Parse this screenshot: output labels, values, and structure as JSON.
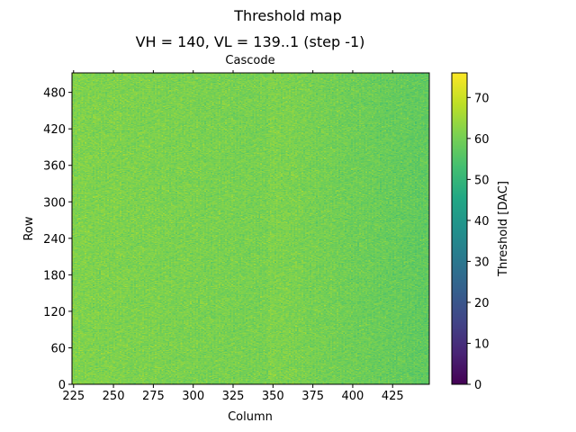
{
  "chart_data": {
    "type": "heatmap",
    "suptitle": "Threshold map",
    "title": "VH = 140, VL = 139..1 (step -1)",
    "top_label": "Cascode",
    "xlabel": "Column",
    "ylabel": "Row",
    "colorbar_label": "Threshold [DAC]",
    "colormap": "viridis",
    "xlim": [
      224,
      448
    ],
    "ylim": [
      0,
      512
    ],
    "clim": [
      0,
      76
    ],
    "x_ticks": [
      225,
      250,
      275,
      300,
      325,
      350,
      375,
      400,
      425
    ],
    "y_ticks": [
      0,
      60,
      120,
      180,
      240,
      300,
      360,
      420,
      480
    ],
    "colorbar_ticks": [
      0,
      10,
      20,
      30,
      40,
      50,
      60,
      70
    ],
    "value_summary": {
      "typical_min": 56,
      "typical_max": 66,
      "left_region_mean": 61,
      "right_region_mean": 57
    }
  }
}
